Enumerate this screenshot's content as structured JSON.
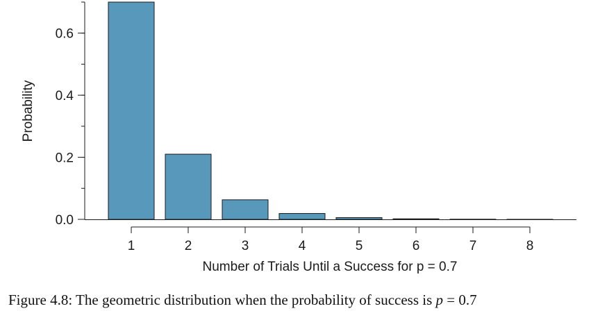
{
  "chart_data": {
    "type": "bar",
    "categories": [
      "1",
      "2",
      "3",
      "4",
      "5",
      "6",
      "7",
      "8"
    ],
    "values": [
      0.7,
      0.21,
      0.063,
      0.0189,
      0.00567,
      0.0017,
      0.00051,
      0.000153
    ],
    "xlabel": "Number of Trials Until a Success for p = 0.7",
    "ylabel": "Probability",
    "ylim": [
      0,
      0.7
    ],
    "yticks": [
      "0.0",
      "0.2",
      "0.4",
      "0.6"
    ],
    "grid": false,
    "colors": {
      "bar_fill": "#5899bb",
      "bar_stroke": "#1a1a1a",
      "axis": "#1a1a1a"
    }
  },
  "caption": {
    "label": "Figure 4.8:",
    "text": "The geometric distribution when the probability of success is",
    "variable": "p",
    "relation": "= 0.7"
  }
}
